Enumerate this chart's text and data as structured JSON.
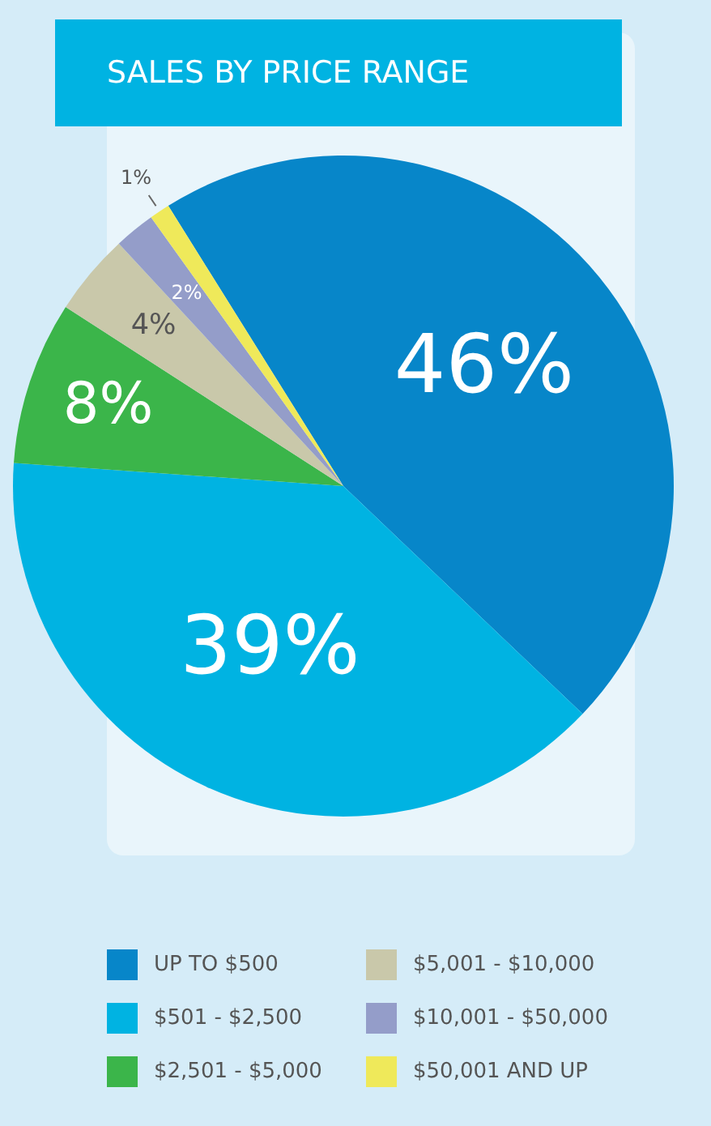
{
  "chart_data": {
    "type": "pie",
    "title": "SALES BY PRICE RANGE",
    "categories": [
      "UP TO $500",
      "$501 - $2,500",
      "$2,501 - $5,000",
      "$5,001 - $10,000",
      "$10,001 - $50,000",
      "$50,001 AND UP"
    ],
    "values": [
      46,
      39,
      8,
      4,
      2,
      1
    ],
    "colors": [
      "#0786c9",
      "#00b3e2",
      "#3bb54a",
      "#c9c8aa",
      "#949dc9",
      "#efe95a"
    ],
    "value_labels": [
      "46%",
      "39%",
      "8%",
      "4%",
      "2%",
      "1%"
    ],
    "legend": "bottom"
  }
}
